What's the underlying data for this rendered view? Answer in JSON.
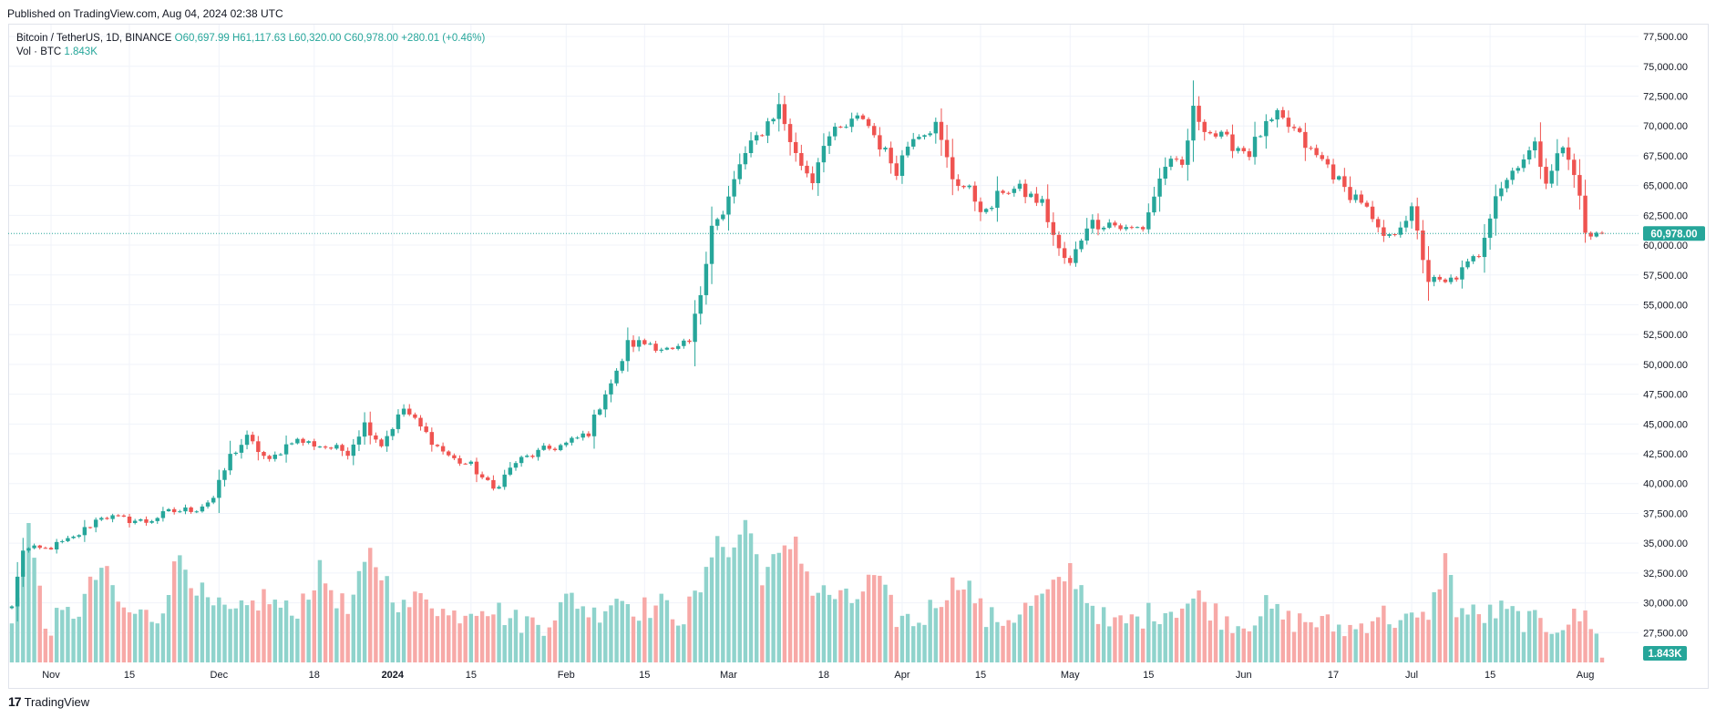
{
  "header": {
    "published": "Published on TradingView.com, Aug 04, 2024 02:38 UTC"
  },
  "legend": {
    "symbol": "Bitcoin / TetherUS, 1D, BINANCE",
    "open": "O60,697.99",
    "high": "H61,117.63",
    "low": "L60,320.00",
    "close": "C60,978.00",
    "change": "+280.01 (+0.46%)",
    "vol_label": "Vol · BTC",
    "vol_value": "1.843K"
  },
  "price_label": "60,978.00",
  "volume_label": "1.843K",
  "brand": {
    "name": "TradingView",
    "logo_glyph": "17"
  },
  "colors": {
    "up": "#26a69a",
    "down": "#ef5350",
    "up_volume": "#8fd3cc",
    "down_volume": "#f7a9a7",
    "grid": "#f0f3fa",
    "price_line": "#26a69a"
  },
  "chart_data": {
    "type": "candlestick",
    "symbol": "Bitcoin / TetherUS",
    "interval": "1D",
    "exchange": "BINANCE",
    "ylim": [
      25000,
      78500
    ],
    "y_ticks": [
      "27,500.00",
      "30,000.00",
      "32,500.00",
      "35,000.00",
      "37,500.00",
      "40,000.00",
      "42,500.00",
      "45,000.00",
      "47,500.00",
      "50,000.00",
      "52,500.00",
      "55,000.00",
      "57,500.00",
      "60,000.00",
      "62,500.00",
      "65,000.00",
      "67,500.00",
      "70,000.00",
      "72,500.00",
      "75,000.00",
      "77,500.00"
    ],
    "y_tick_values": [
      27500,
      30000,
      32500,
      35000,
      37500,
      40000,
      42500,
      45000,
      47500,
      50000,
      52500,
      55000,
      57500,
      60000,
      62500,
      65000,
      67500,
      70000,
      72500,
      75000,
      77500
    ],
    "x_ticks": [
      {
        "label": "Nov",
        "bar": 7,
        "bold": false
      },
      {
        "label": "15",
        "bar": 21,
        "bold": false
      },
      {
        "label": "Dec",
        "bar": 37,
        "bold": false
      },
      {
        "label": "18",
        "bar": 54,
        "bold": false
      },
      {
        "label": "2024",
        "bar": 68,
        "bold": true
      },
      {
        "label": "15",
        "bar": 82,
        "bold": false
      },
      {
        "label": "Feb",
        "bar": 99,
        "bold": false
      },
      {
        "label": "15",
        "bar": 113,
        "bold": false
      },
      {
        "label": "Mar",
        "bar": 128,
        "bold": false
      },
      {
        "label": "18",
        "bar": 145,
        "bold": false
      },
      {
        "label": "Apr",
        "bar": 159,
        "bold": false
      },
      {
        "label": "15",
        "bar": 173,
        "bold": false
      },
      {
        "label": "May",
        "bar": 189,
        "bold": false
      },
      {
        "label": "15",
        "bar": 203,
        "bold": false
      },
      {
        "label": "Jun",
        "bar": 220,
        "bold": false
      },
      {
        "label": "17",
        "bar": 236,
        "bold": false
      },
      {
        "label": "Jul",
        "bar": 250,
        "bold": false
      },
      {
        "label": "15",
        "bar": 264,
        "bold": false
      },
      {
        "label": "Aug",
        "bar": 281,
        "bold": false
      }
    ],
    "last_close": 60978,
    "anchors": [
      [
        0,
        29700
      ],
      [
        2,
        34500
      ],
      [
        6,
        34500
      ],
      [
        11,
        35400
      ],
      [
        16,
        37300
      ],
      [
        20,
        37000
      ],
      [
        24,
        36800
      ],
      [
        28,
        37600
      ],
      [
        33,
        37900
      ],
      [
        36,
        38800
      ],
      [
        39,
        42300
      ],
      [
        42,
        43800
      ],
      [
        46,
        41800
      ],
      [
        50,
        43700
      ],
      [
        55,
        43200
      ],
      [
        60,
        42700
      ],
      [
        63,
        45000
      ],
      [
        66,
        43300
      ],
      [
        70,
        46300
      ],
      [
        73,
        44700
      ],
      [
        76,
        43100
      ],
      [
        79,
        42000
      ],
      [
        82,
        41500
      ],
      [
        86,
        39500
      ],
      [
        90,
        41800
      ],
      [
        95,
        42800
      ],
      [
        99,
        43300
      ],
      [
        103,
        44300
      ],
      [
        106,
        47700
      ],
      [
        108,
        49200
      ],
      [
        110,
        51700
      ],
      [
        114,
        51800
      ],
      [
        118,
        51000
      ],
      [
        121,
        51800
      ],
      [
        123,
        56000
      ],
      [
        125,
        61900
      ],
      [
        127,
        62400
      ],
      [
        130,
        66800
      ],
      [
        133,
        69000
      ],
      [
        137,
        71600
      ],
      [
        140,
        67500
      ],
      [
        143,
        65500
      ],
      [
        145,
        68800
      ],
      [
        149,
        69900
      ],
      [
        152,
        70800
      ],
      [
        156,
        67700
      ],
      [
        158,
        66400
      ],
      [
        161,
        69400
      ],
      [
        165,
        70000
      ],
      [
        168,
        65700
      ],
      [
        171,
        64500
      ],
      [
        174,
        62600
      ],
      [
        177,
        64700
      ],
      [
        180,
        64600
      ],
      [
        184,
        63500
      ],
      [
        187,
        59500
      ],
      [
        189,
        58300
      ],
      [
        192,
        61800
      ],
      [
        196,
        61900
      ],
      [
        199,
        61300
      ],
      [
        202,
        61500
      ],
      [
        206,
        66800
      ],
      [
        209,
        66600
      ],
      [
        211,
        71200
      ],
      [
        214,
        69500
      ],
      [
        217,
        68700
      ],
      [
        221,
        67800
      ],
      [
        223,
        69400
      ],
      [
        226,
        70700
      ],
      [
        229,
        69600
      ],
      [
        232,
        67800
      ],
      [
        235,
        66700
      ],
      [
        238,
        64600
      ],
      [
        241,
        63800
      ],
      [
        244,
        61000
      ],
      [
        246,
        60500
      ],
      [
        248,
        61900
      ],
      [
        250,
        62800
      ],
      [
        253,
        57100
      ],
      [
        256,
        56700
      ],
      [
        259,
        57800
      ],
      [
        262,
        59300
      ],
      [
        265,
        64400
      ],
      [
        267,
        65500
      ],
      [
        269,
        67000
      ],
      [
        272,
        68200
      ],
      [
        274,
        65700
      ],
      [
        277,
        68200
      ],
      [
        280,
        64600
      ],
      [
        281,
        60700
      ],
      [
        284,
        60978
      ]
    ],
    "volume_anchors": [
      [
        0,
        28000
      ],
      [
        3,
        36500
      ],
      [
        6,
        28000
      ],
      [
        12,
        29500
      ],
      [
        16,
        33000
      ],
      [
        20,
        29200
      ],
      [
        26,
        28800
      ],
      [
        30,
        34000
      ],
      [
        35,
        29800
      ],
      [
        40,
        28800
      ],
      [
        45,
        30500
      ],
      [
        50,
        29000
      ],
      [
        55,
        32500
      ],
      [
        60,
        29200
      ],
      [
        64,
        34000
      ],
      [
        70,
        29500
      ],
      [
        74,
        30800
      ],
      [
        78,
        28800
      ],
      [
        84,
        30000
      ],
      [
        90,
        28500
      ],
      [
        95,
        28300
      ],
      [
        100,
        30500
      ],
      [
        104,
        29000
      ],
      [
        108,
        30600
      ],
      [
        112,
        29500
      ],
      [
        116,
        29800
      ],
      [
        120,
        28800
      ],
      [
        124,
        32000
      ],
      [
        126,
        36500
      ],
      [
        128,
        33500
      ],
      [
        131,
        37000
      ],
      [
        134,
        32500
      ],
      [
        138,
        34000
      ],
      [
        140,
        35600
      ],
      [
        143,
        31000
      ],
      [
        146,
        30700
      ],
      [
        150,
        30000
      ],
      [
        154,
        32200
      ],
      [
        158,
        28800
      ],
      [
        162,
        28400
      ],
      [
        166,
        30600
      ],
      [
        170,
        32200
      ],
      [
        174,
        28600
      ],
      [
        178,
        28700
      ],
      [
        182,
        29800
      ],
      [
        186,
        31000
      ],
      [
        189,
        32800
      ],
      [
        192,
        30500
      ],
      [
        196,
        28000
      ],
      [
        200,
        28500
      ],
      [
        204,
        29200
      ],
      [
        208,
        29600
      ],
      [
        212,
        30400
      ],
      [
        216,
        28800
      ],
      [
        220,
        28200
      ],
      [
        224,
        29600
      ],
      [
        228,
        28500
      ],
      [
        232,
        28500
      ],
      [
        236,
        28000
      ],
      [
        240,
        27800
      ],
      [
        244,
        29200
      ],
      [
        248,
        28400
      ],
      [
        252,
        28500
      ],
      [
        254,
        30200
      ],
      [
        256,
        33800
      ],
      [
        258,
        29600
      ],
      [
        262,
        28800
      ],
      [
        266,
        29300
      ],
      [
        270,
        28600
      ],
      [
        274,
        28000
      ],
      [
        278,
        28500
      ],
      [
        281,
        28900
      ],
      [
        283,
        27900
      ],
      [
        284,
        25400
      ]
    ]
  }
}
